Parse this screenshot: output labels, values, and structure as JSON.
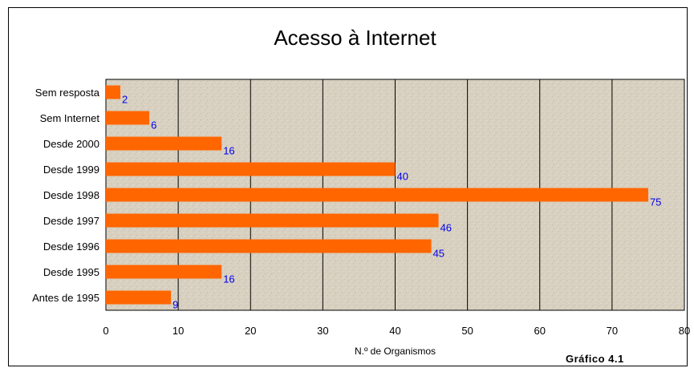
{
  "chart_data": {
    "type": "bar",
    "orientation": "horizontal",
    "title": "Acesso à Internet",
    "xlabel": "N.º de Organismos",
    "ylabel": "",
    "caption": "Gráfico 4.1",
    "categories": [
      "Sem resposta",
      "Sem Internet",
      "Desde 2000",
      "Desde 1999",
      "Desde 1998",
      "Desde 1997",
      "Desde 1996",
      "Desde 1995",
      "Antes de 1995"
    ],
    "values": [
      2,
      6,
      16,
      40,
      75,
      46,
      45,
      16,
      9
    ],
    "data_labels": [
      "2",
      "6",
      "16",
      "40",
      "75",
      "46",
      "45",
      "16",
      "9"
    ],
    "xlim": [
      0,
      80
    ],
    "xticks": [
      0,
      10,
      20,
      30,
      40,
      50,
      60,
      70,
      80
    ],
    "xtick_labels": [
      "0",
      "10",
      "20",
      "30",
      "40",
      "50",
      "60",
      "70",
      "80"
    ],
    "grid": "vertical",
    "legend": "none",
    "colors": {
      "bar": "#ff6600",
      "data_label": "#0000ee",
      "plot_background": "#d8d0c0",
      "grid": "#000000"
    }
  }
}
